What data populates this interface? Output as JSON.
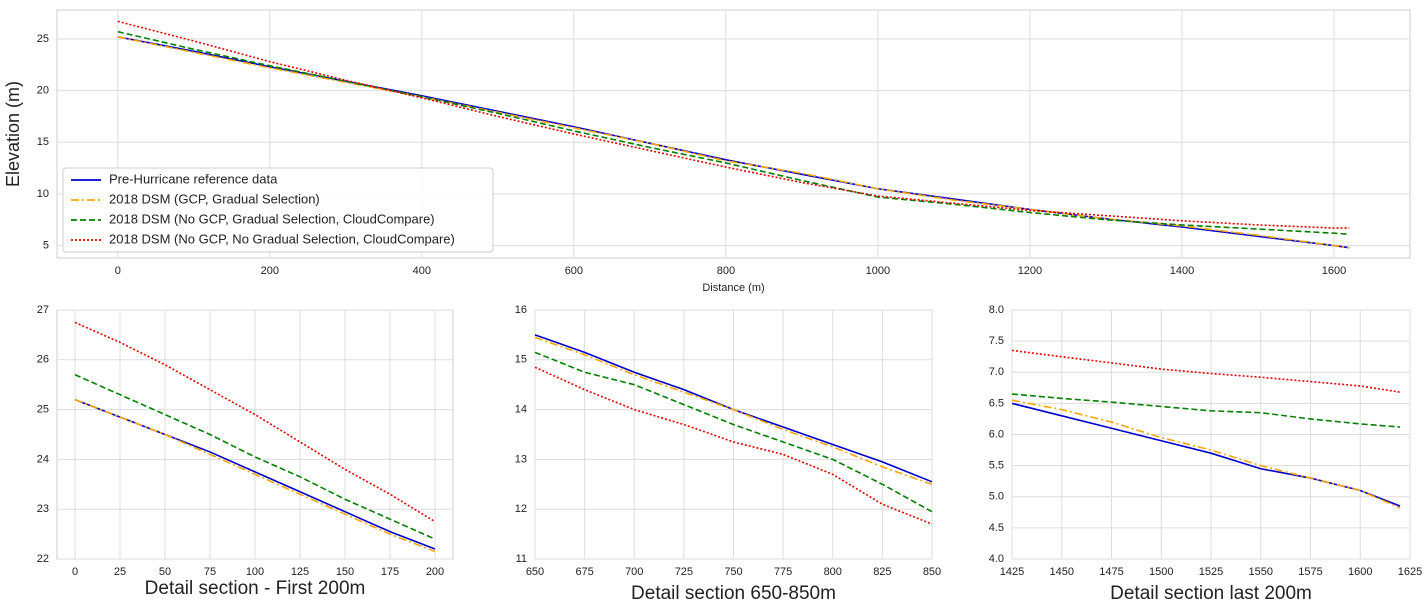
{
  "chart_data": [
    {
      "type": "line",
      "ylabel": "Elevation (m)",
      "xlabel": "Distance (m)",
      "legend": "lower left",
      "grid": true,
      "x": [
        0,
        100,
        200,
        300,
        400,
        500,
        600,
        700,
        800,
        900,
        1000,
        1100,
        1200,
        1300,
        1400,
        1500,
        1600,
        1620
      ],
      "xlim": [
        -80,
        1700
      ],
      "xticks": [
        0,
        200,
        400,
        600,
        800,
        1000,
        1200,
        1400,
        1600
      ],
      "ylim": [
        3.8,
        27.8
      ],
      "yticks": [
        5,
        10,
        15,
        20,
        25
      ],
      "series": [
        {
          "name": "Pre-Hurricane reference data",
          "color": "#0000cc",
          "style": "solid",
          "values": [
            25.2,
            23.8,
            22.3,
            20.9,
            19.5,
            18.0,
            16.5,
            14.9,
            13.3,
            11.9,
            10.5,
            9.5,
            8.5,
            7.6,
            6.8,
            5.9,
            5.0,
            4.8
          ]
        },
        {
          "name": "2018 DSM (GCP, Gradual Selection)",
          "color": "#ffa500",
          "style": "dashdot",
          "values": [
            25.2,
            23.7,
            22.2,
            20.8,
            19.4,
            17.9,
            16.4,
            14.9,
            13.2,
            12.0,
            10.5,
            9.4,
            8.5,
            7.6,
            6.9,
            6.0,
            5.0,
            4.8
          ]
        },
        {
          "name": "2018 DSM (No GCP, Gradual Selection, CloudCompare)",
          "color": "#008000",
          "style": "dashed",
          "values": [
            25.7,
            24.0,
            22.4,
            20.9,
            19.4,
            17.8,
            16.1,
            14.5,
            13.0,
            11.3,
            9.7,
            9.0,
            8.2,
            7.5,
            7.0,
            6.6,
            6.2,
            6.1
          ]
        },
        {
          "name": "2018 DSM (No GCP, No Gradual Selection, CloudCompare)",
          "color": "#e00000",
          "style": "dotted",
          "values": [
            26.7,
            24.8,
            22.8,
            21.0,
            19.3,
            17.5,
            15.8,
            14.2,
            12.6,
            11.1,
            9.8,
            9.1,
            8.4,
            7.9,
            7.4,
            7.0,
            6.7,
            6.7
          ]
        }
      ]
    },
    {
      "type": "line",
      "xlabel": "Detail section - First 200m",
      "grid": true,
      "x": [
        0,
        25,
        50,
        75,
        100,
        125,
        150,
        175,
        200
      ],
      "xlim": [
        -10,
        210
      ],
      "xticks": [
        0,
        25,
        50,
        75,
        100,
        125,
        150,
        175,
        200
      ],
      "ylim": [
        22,
        27
      ],
      "yticks": [
        22,
        23,
        24,
        25,
        26,
        27
      ],
      "series": [
        {
          "color": "#0000cc",
          "style": "solid",
          "values": [
            25.2,
            24.85,
            24.5,
            24.15,
            23.75,
            23.35,
            22.95,
            22.55,
            22.2
          ]
        },
        {
          "color": "#ffa500",
          "style": "dashdot",
          "values": [
            25.2,
            24.85,
            24.5,
            24.1,
            23.7,
            23.3,
            22.9,
            22.5,
            22.15
          ]
        },
        {
          "color": "#008000",
          "style": "dashed",
          "values": [
            25.7,
            25.3,
            24.9,
            24.5,
            24.05,
            23.65,
            23.2,
            22.8,
            22.4
          ]
        },
        {
          "color": "#e00000",
          "style": "dotted",
          "values": [
            26.75,
            26.35,
            25.9,
            25.4,
            24.9,
            24.35,
            23.8,
            23.3,
            22.75
          ]
        }
      ]
    },
    {
      "type": "line",
      "xlabel": "Detail section 650-850m",
      "grid": true,
      "x": [
        650,
        675,
        700,
        725,
        750,
        775,
        800,
        825,
        850
      ],
      "xlim": [
        650,
        850
      ],
      "xticks": [
        650,
        675,
        700,
        725,
        750,
        775,
        800,
        825,
        850
      ],
      "ylim": [
        11,
        16
      ],
      "yticks": [
        11,
        12,
        13,
        14,
        15,
        16
      ],
      "series": [
        {
          "color": "#0000cc",
          "style": "solid",
          "values": [
            15.5,
            15.15,
            14.75,
            14.4,
            14.0,
            13.65,
            13.3,
            12.95,
            12.55
          ]
        },
        {
          "color": "#ffa500",
          "style": "dashdot",
          "values": [
            15.45,
            15.1,
            14.7,
            14.35,
            14.0,
            13.6,
            13.25,
            12.85,
            12.5
          ]
        },
        {
          "color": "#008000",
          "style": "dashed",
          "values": [
            15.15,
            14.75,
            14.5,
            14.1,
            13.7,
            13.35,
            13.0,
            12.5,
            11.95
          ]
        },
        {
          "color": "#e00000",
          "style": "dotted",
          "values": [
            14.85,
            14.4,
            14.0,
            13.7,
            13.35,
            13.1,
            12.7,
            12.1,
            11.7
          ]
        }
      ]
    },
    {
      "type": "line",
      "xlabel": "Detail section last 200m",
      "grid": true,
      "x": [
        1425,
        1450,
        1475,
        1500,
        1525,
        1550,
        1575,
        1600,
        1620
      ],
      "xlim": [
        1425,
        1625
      ],
      "xticks": [
        1425,
        1450,
        1475,
        1500,
        1525,
        1550,
        1575,
        1600,
        1625
      ],
      "ylim": [
        4,
        8
      ],
      "yticks": [
        {
          "value": 4,
          "label": "4.0"
        },
        4.5,
        {
          "value": 5,
          "label": "5.0"
        },
        5.5,
        {
          "value": 6,
          "label": "6.0"
        },
        6.5,
        {
          "value": 7,
          "label": "7.0"
        },
        7.5,
        {
          "value": 8,
          "label": "8.0"
        }
      ],
      "series": [
        {
          "color": "#0000cc",
          "style": "solid",
          "values": [
            6.5,
            6.3,
            6.1,
            5.9,
            5.7,
            5.45,
            5.3,
            5.1,
            4.85
          ]
        },
        {
          "color": "#ffa500",
          "style": "dashdot",
          "values": [
            6.55,
            6.4,
            6.2,
            5.95,
            5.75,
            5.5,
            5.3,
            5.1,
            4.82
          ]
        },
        {
          "color": "#008000",
          "style": "dashed",
          "values": [
            6.65,
            6.58,
            6.52,
            6.45,
            6.38,
            6.35,
            6.25,
            6.17,
            6.12
          ]
        },
        {
          "color": "#e00000",
          "style": "dotted",
          "values": [
            7.35,
            7.25,
            7.15,
            7.05,
            6.98,
            6.92,
            6.85,
            6.78,
            6.68
          ]
        }
      ]
    }
  ]
}
